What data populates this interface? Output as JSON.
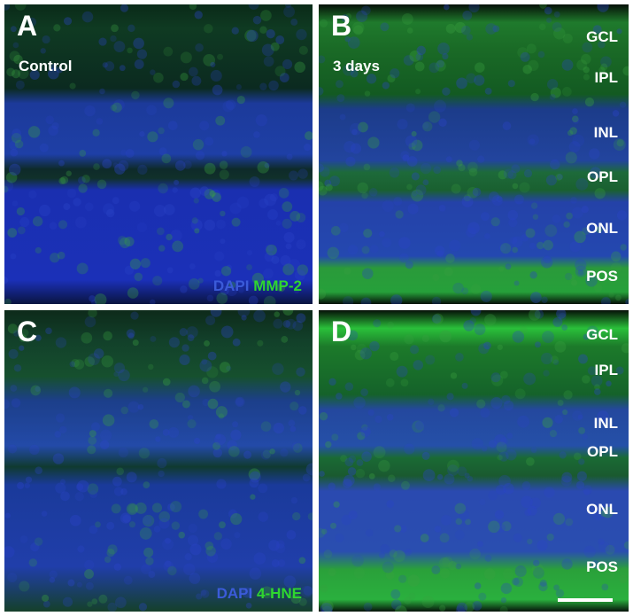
{
  "panels": [
    {
      "letter": "A",
      "condition": "Control",
      "stain": [
        "DAPI",
        "MMP-2"
      ]
    },
    {
      "letter": "B",
      "condition": "3 days",
      "layers": [
        "GCL",
        "IPL",
        "INL",
        "OPL",
        "ONL",
        "POS"
      ]
    },
    {
      "letter": "C",
      "stain": [
        "DAPI",
        "4-HNE"
      ]
    },
    {
      "letter": "D",
      "layers": [
        "GCL",
        "IPL",
        "INL",
        "OPL",
        "ONL",
        "POS"
      ]
    }
  ]
}
